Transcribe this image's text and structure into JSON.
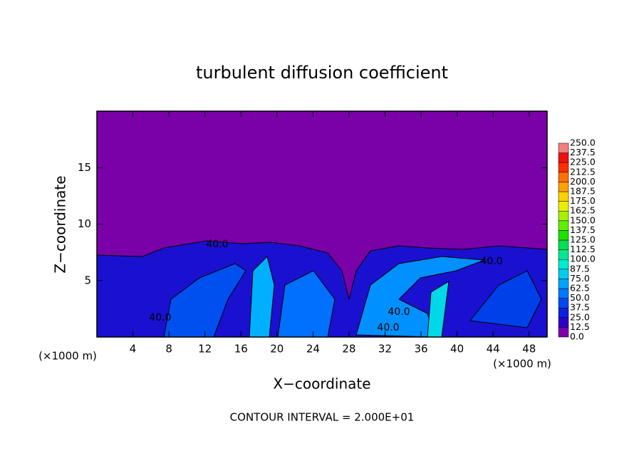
{
  "chart_data": {
    "type": "contour",
    "title": "turbulent diffusion coefficient",
    "xlabel": "X−coordinate",
    "ylabel": "Z−coordinate",
    "x_unit": "(×1000 m)",
    "x_unit_right": "(×1000 m)",
    "footer": "CONTOUR INTERVAL = 2.000E+01",
    "xlim": [
      0,
      50
    ],
    "ylim": [
      0,
      20
    ],
    "xticks": [
      4,
      8,
      12,
      16,
      20,
      24,
      28,
      32,
      36,
      40,
      44,
      48
    ],
    "yticks": [
      5,
      10,
      15
    ],
    "contour_labels": [
      "40.0",
      "40.0",
      "40.0",
      "40.0",
      "40.0"
    ],
    "colorbar": {
      "levels": [
        {
          "value": 0,
          "label": "0.0"
        },
        {
          "value": 12.5,
          "label": "12.5"
        },
        {
          "value": 25,
          "label": "25.0"
        },
        {
          "value": 37.5,
          "label": "37.5"
        },
        {
          "value": 50,
          "label": "50.0"
        },
        {
          "value": 62.5,
          "label": "62.5"
        },
        {
          "value": 75,
          "label": "75.0"
        },
        {
          "value": 87.5,
          "label": "87.5"
        },
        {
          "value": 100,
          "label": "100.0"
        },
        {
          "value": 112.5,
          "label": "112.5"
        },
        {
          "value": 125,
          "label": "125.0"
        },
        {
          "value": 137.5,
          "label": "137.5"
        },
        {
          "value": 150,
          "label": "150.0"
        },
        {
          "value": 162.5,
          "label": "162.5"
        },
        {
          "value": 175,
          "label": "175.0"
        },
        {
          "value": 187.5,
          "label": "187.5"
        },
        {
          "value": 200,
          "label": "200.0"
        },
        {
          "value": 212.5,
          "label": "212.5"
        },
        {
          "value": 225,
          "label": "225.0"
        },
        {
          "value": 237.5,
          "label": "237.5"
        },
        {
          "value": 250,
          "label": "250.0"
        }
      ],
      "colors": [
        "#7a00a8",
        "#2a00c8",
        "#0a20e0",
        "#0048f0",
        "#0078ff",
        "#00a4ff",
        "#00ccf0",
        "#00ecd0",
        "#00e890",
        "#00e050",
        "#20e000",
        "#60f000",
        "#a8f000",
        "#e8f000",
        "#ffd000",
        "#ffa000",
        "#ff7000",
        "#ff3000",
        "#f01010",
        "#f08080"
      ]
    }
  }
}
